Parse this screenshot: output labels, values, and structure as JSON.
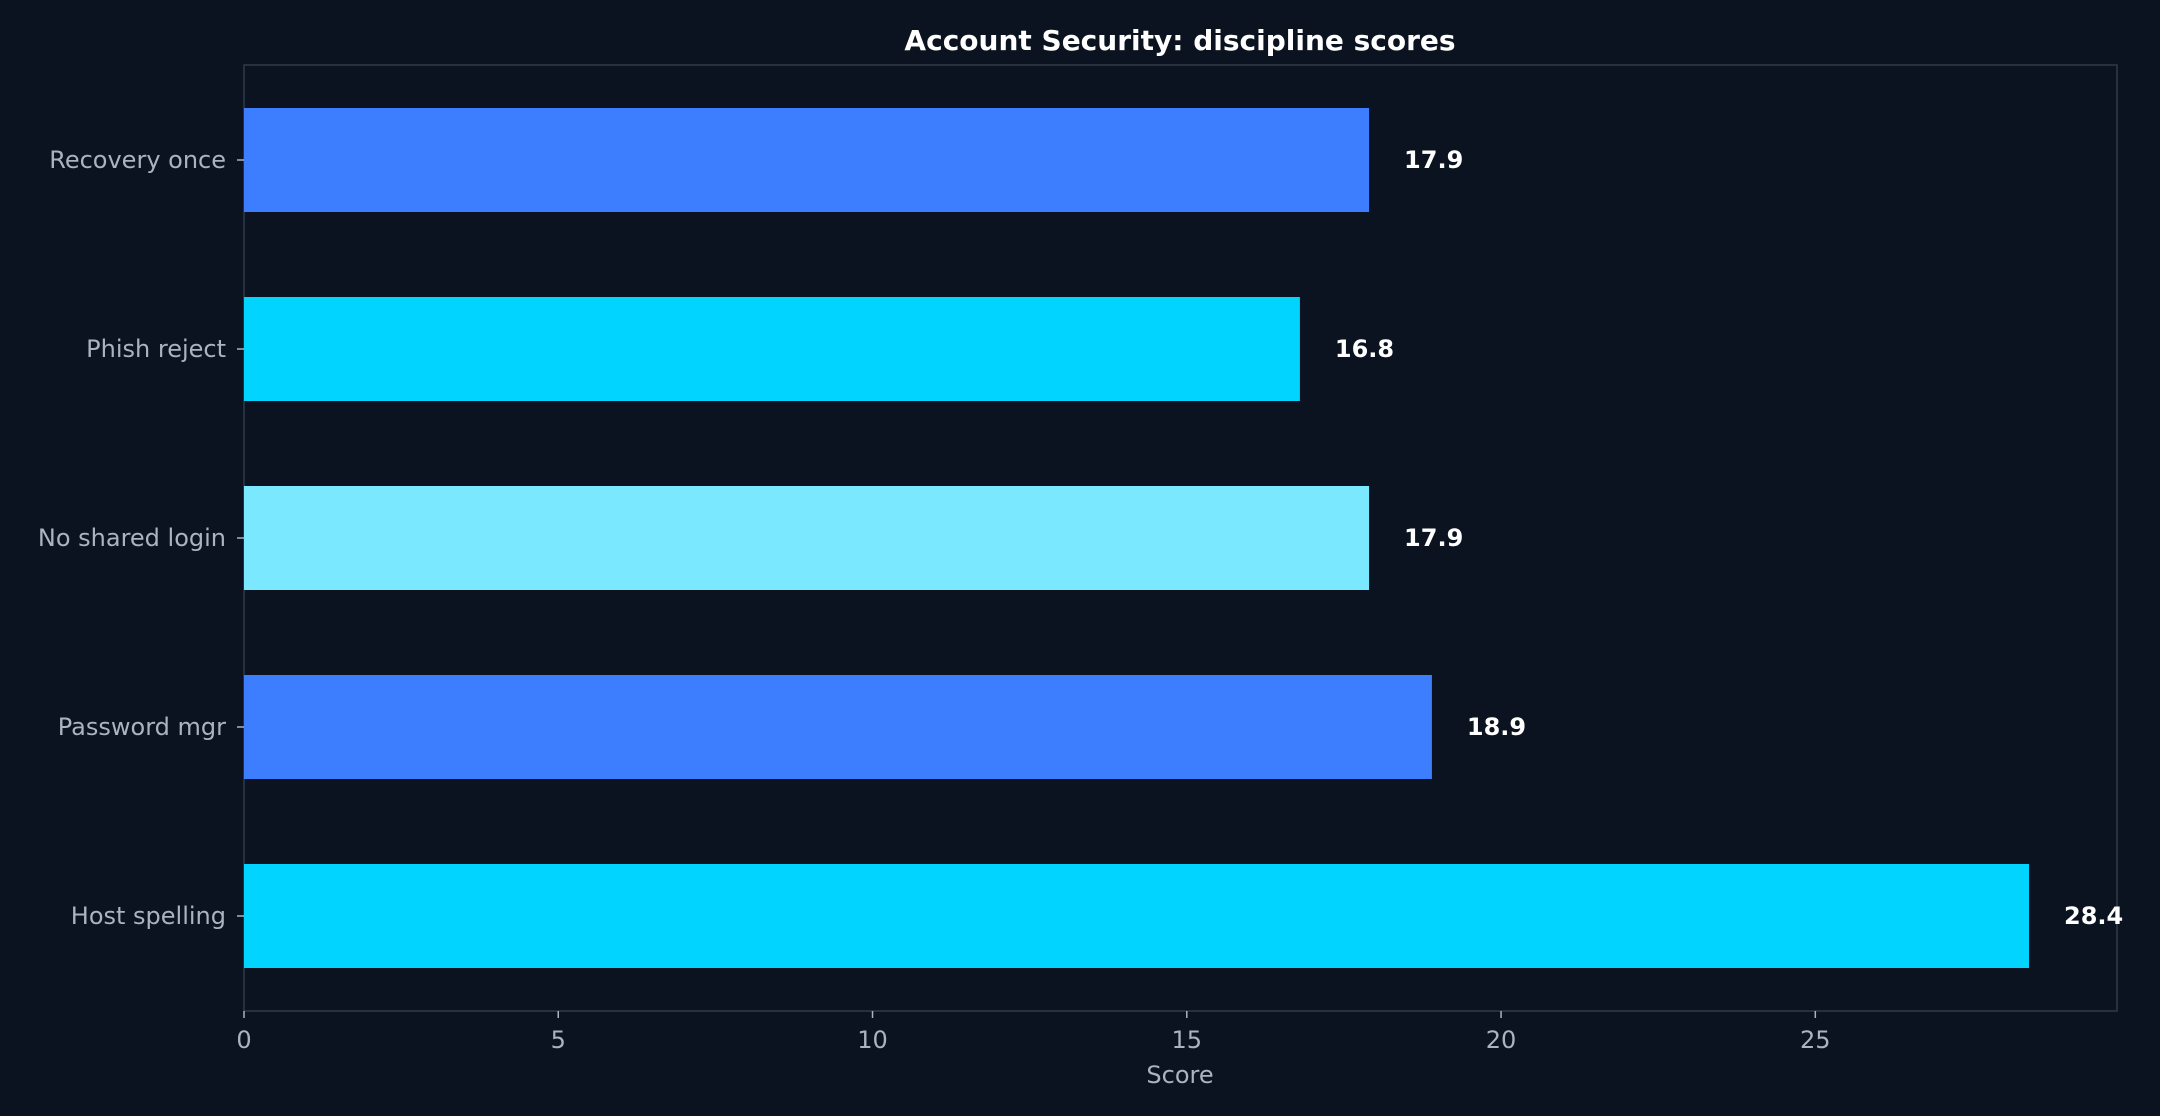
{
  "chart_data": {
    "type": "bar",
    "orientation": "horizontal",
    "title": "Account Security: discipline scores",
    "xlabel": "Score",
    "ylabel": "",
    "categories": [
      "Recovery once",
      "Phish reject",
      "No shared login",
      "Password mgr",
      "Host spelling"
    ],
    "values": [
      17.9,
      16.8,
      17.9,
      18.9,
      28.4
    ],
    "value_labels": [
      "17.9",
      "16.8",
      "17.9",
      "18.9",
      "28.4"
    ],
    "bar_colors": [
      "#3d7eff",
      "#00d4ff",
      "#7ae9ff",
      "#3d7eff",
      "#00d4ff"
    ],
    "xlim": [
      0,
      29.8
    ],
    "xticks": [
      0,
      5,
      10,
      15,
      20,
      25
    ],
    "xtick_labels": [
      "0",
      "5",
      "10",
      "15",
      "20",
      "25"
    ],
    "grid": false,
    "legend": "none"
  },
  "colors": {
    "background": "#0b1320",
    "frame": "#2f3a4a",
    "tick_text": "#a9b3c1",
    "title_text": "#ffffff",
    "value_text": "#ffffff"
  }
}
